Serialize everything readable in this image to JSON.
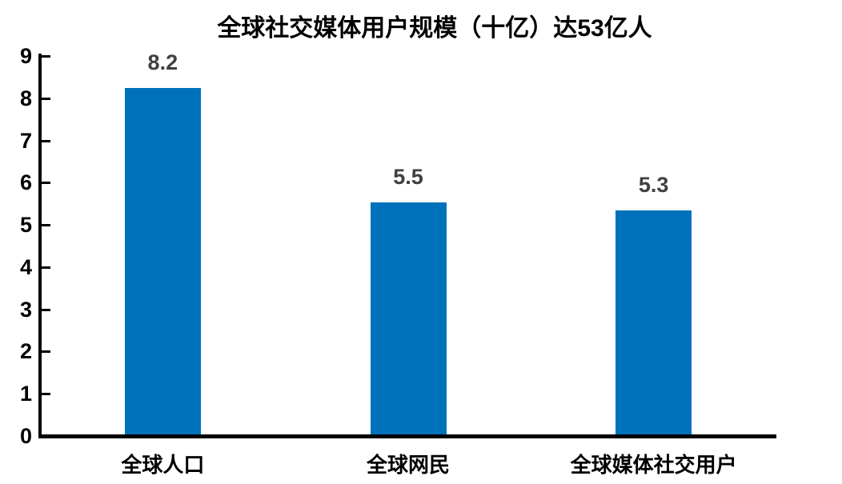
{
  "chart_data": {
    "type": "bar",
    "title": "全球社交媒体用户规模（十亿）达53亿人",
    "title_prefix": "全球社交媒体用户规模（十亿）达",
    "title_number": "53",
    "title_suffix": "亿人",
    "categories": [
      "全球人口",
      "全球网民",
      "全球媒体社交用户"
    ],
    "values": [
      8.2,
      5.5,
      5.3
    ],
    "value_labels": [
      "8.2",
      "5.5",
      "5.3"
    ],
    "xlabel": "",
    "ylabel": "",
    "ylim": [
      0,
      9
    ],
    "yticks": [
      0,
      1,
      2,
      3,
      4,
      5,
      6,
      7,
      8,
      9
    ],
    "grid": false,
    "legend": "none",
    "colors": {
      "bar": "#0072BC",
      "value_label": "#404040",
      "axis": "#000000",
      "tick_label": "#000000",
      "title": "#000000",
      "background": "#ffffff"
    }
  }
}
